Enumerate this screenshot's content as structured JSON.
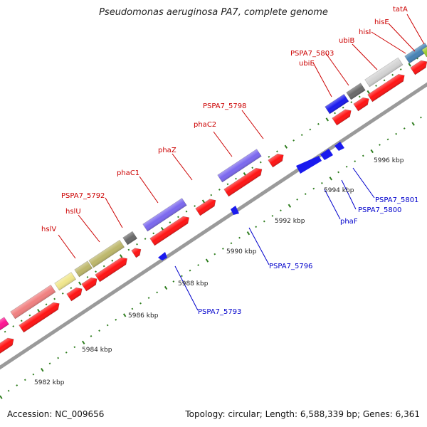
{
  "title": "Pseudomonas aeruginosa PA7, complete genome",
  "footer": {
    "accession": "Accession: NC_009656",
    "topology": "Topology: circular; Length: 6,588,339 bp; Genes: 6,361"
  },
  "colors": {
    "backbone": "#9a9a9a",
    "tick": "#2e7d1e",
    "gene_red": "#ff1414",
    "gene_blue": "#1a1aee",
    "label_red": "#cc0000",
    "label_blue": "#0000cc",
    "kbp_text": "#222222"
  },
  "kbp_labels": [
    "5982 kbp",
    "5984 kbp",
    "5986 kbp",
    "5988 kbp",
    "5990 kbp",
    "5992 kbp",
    "5994 kbp",
    "5996 kbp"
  ],
  "forward_genes": [
    {
      "label": "",
      "color": "#ff1493",
      "lane": "outer"
    },
    {
      "label": "",
      "color": "#f08080",
      "lane": "outer"
    },
    {
      "label": "hslV",
      "color": "#f0e68c",
      "lane": "outer"
    },
    {
      "label": "hslU",
      "color": "#bdb76b",
      "lane": "outer"
    },
    {
      "label": "PSPA7_5792",
      "color": "#696969",
      "lane": "outer"
    },
    {
      "label": "phaC1",
      "color": "#7b68ee",
      "lane": "outer"
    },
    {
      "label": "phaZ",
      "color": "#ff1414",
      "lane": "outer"
    },
    {
      "label": "phaC2",
      "color": "#7b68ee",
      "lane": "outer"
    },
    {
      "label": "PSPA7_5798",
      "color": "#ff1414",
      "lane": "outer"
    },
    {
      "label": "PSPA7_5803",
      "color": "#1a1aee",
      "lane": "outer"
    },
    {
      "label": "ubiE",
      "color": "#696969",
      "lane": "outer"
    },
    {
      "label": "ubiB",
      "color": "#d3d3d3",
      "lane": "outer"
    },
    {
      "label": "hisI",
      "color": "#4682b4",
      "lane": "outer"
    },
    {
      "label": "hisE",
      "color": "#9acd32",
      "lane": "outer"
    },
    {
      "label": "tatA",
      "color": "#ff1414",
      "lane": "outer"
    }
  ],
  "reverse_labels": [
    "PSPA7_5793",
    "PSPA7_5796",
    "phaF",
    "PSPA7_5800",
    "PSPA7_5801"
  ]
}
